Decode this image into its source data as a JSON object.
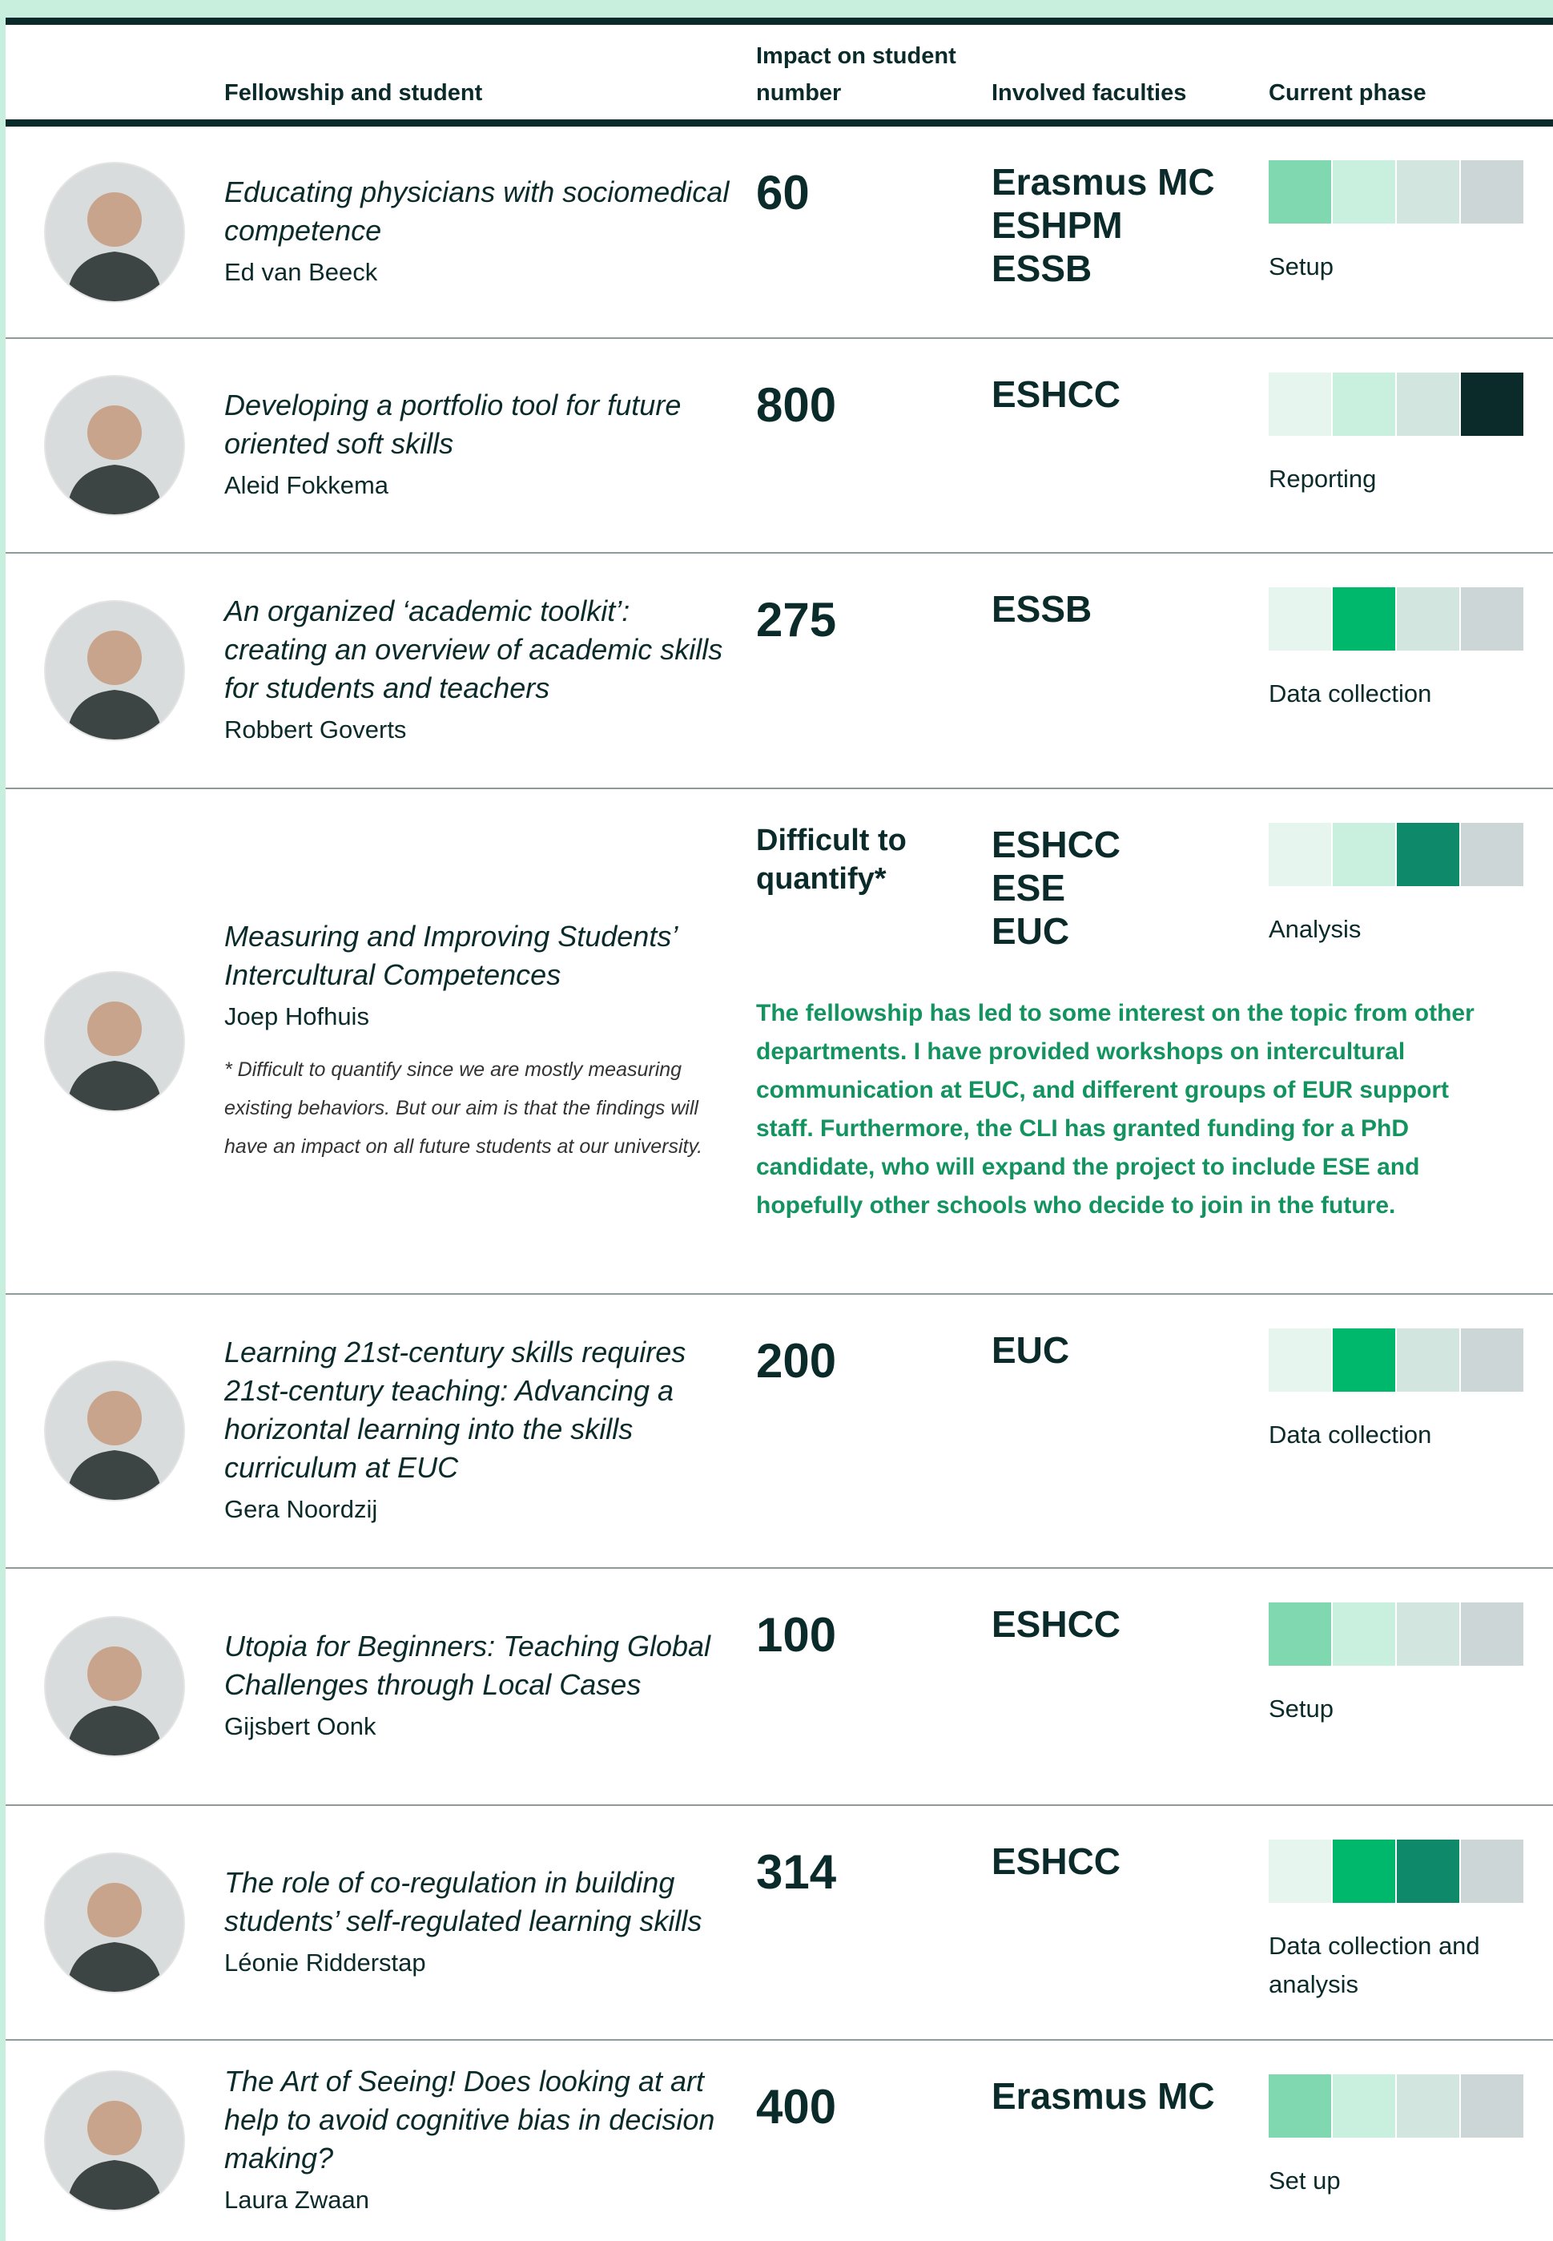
{
  "table": {
    "headers": [
      "Fellowship and student",
      "Impact on student number",
      "Involved faculties",
      "Current phase"
    ],
    "rows": [
      {
        "title": "Educating physicians with sociomedical competence",
        "student": "Ed van Beeck",
        "impact": "60",
        "faculties": [
          "Erasmus MC",
          "ESHPM",
          "ESSB"
        ],
        "phase": "Setup",
        "phase_colors": [
          "#7fd8b0",
          "#c9f0df",
          "#d2e6df",
          "#cdd6d6"
        ]
      },
      {
        "title": "Developing a portfolio tool for future oriented soft skills",
        "student": "Aleid Fokkema",
        "impact": "800",
        "faculties": [
          "ESHCC"
        ],
        "phase": "Reporting",
        "phase_colors": [
          "#e6f6ef",
          "#c9f0df",
          "#d2e6df",
          "#0b2a2a"
        ]
      },
      {
        "title": "An organized ‘academic toolkit’: creating an overview of academic skills for students and teachers",
        "student": "Robbert Goverts",
        "impact": "275",
        "faculties": [
          "ESSB"
        ],
        "phase": "Data collection",
        "phase_colors": [
          "#e6f6ef",
          "#00b86b",
          "#d2e6df",
          "#cdd6d6"
        ]
      },
      {
        "title": "Measuring and Improving Students’ Intercultural Competences",
        "student": "Joep Hofhuis",
        "note": "* Difficult to quantify since we are mostly measuring existing behaviors. But our aim is that the findings will have an impact on all future students at our university.",
        "impact": "Difficult to quantify*",
        "faculties": [
          "ESHCC",
          "ESE",
          "EUC"
        ],
        "phase": "Analysis",
        "phase_colors": [
          "#e6f6ef",
          "#c9f0df",
          "#0e8a6a",
          "#cdd6d6"
        ],
        "comment": "The fellowship has led to some interest on the topic from other departments. I have provided workshops on intercultural communication at EUC, and different groups of EUR support staff. Furthermore, the CLI has granted funding for a PhD candidate, who will expand the project to include ESE and hopefully other schools who decide to join in the future."
      },
      {
        "title": "Learning 21st-century skills requires 21st-century teaching: Advancing a horizontal learning into the skills curriculum at EUC",
        "student": "Gera Noordzij",
        "impact": "200",
        "faculties": [
          "EUC"
        ],
        "phase": "Data collection",
        "phase_colors": [
          "#e6f6ef",
          "#00b86b",
          "#d2e6df",
          "#cdd6d6"
        ]
      },
      {
        "title": "Utopia for Beginners: Teaching Global Challenges through Local Cases",
        "student": "Gijsbert Oonk",
        "impact": "100",
        "faculties": [
          "ESHCC"
        ],
        "phase": "Setup",
        "phase_colors": [
          "#7fd8b0",
          "#c9f0df",
          "#d2e6df",
          "#cdd6d6"
        ]
      },
      {
        "title": "The role of co-regulation in building students’ self-regulated learning skills",
        "student": "Léonie Ridderstap",
        "impact": "314",
        "faculties": [
          "ESHCC"
        ],
        "phase": "Data collection and analysis",
        "phase_colors": [
          "#e6f6ef",
          "#00b86b",
          "#0e8a6a",
          "#cdd6d6"
        ]
      },
      {
        "title": "The Art of Seeing! Does looking at art help to avoid cognitive bias in decision making?",
        "student": "Laura Zwaan",
        "impact": "400",
        "faculties": [
          "Erasmus MC"
        ],
        "phase": "Set up",
        "phase_colors": [
          "#7fd8b0",
          "#c9f0df",
          "#d2e6df",
          "#cdd6d6"
        ]
      }
    ]
  }
}
